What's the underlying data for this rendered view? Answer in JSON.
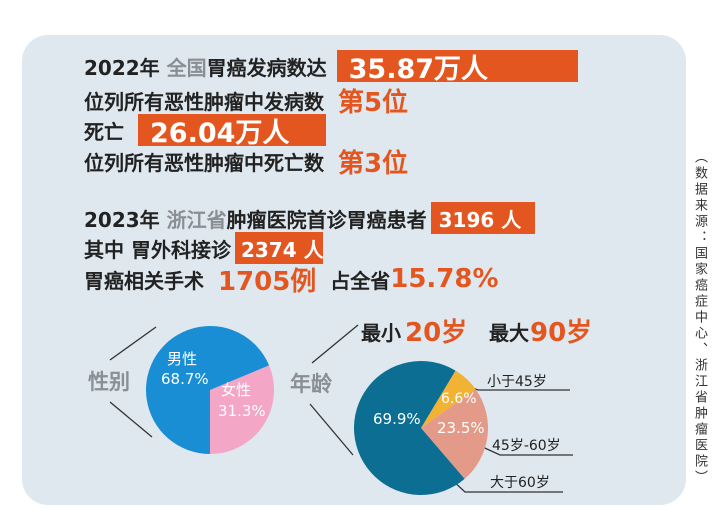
{
  "lines": {
    "l1_year": "2022年",
    "l1_scope": "全国",
    "l1_text": "胃癌发病数达",
    "l1_value": "35.87万人",
    "l2_text": "位列所有恶性肿瘤中发病数",
    "l2_rank": "第5位",
    "l3_text": "死亡",
    "l3_value": "26.04万人",
    "l4_text": "位列所有恶性肿瘤中死亡数",
    "l4_rank": "第3位",
    "l5_year": "2023年",
    "l5_scope": "浙江省",
    "l5_text": "肿瘤医院首诊胃癌患者",
    "l5_value": "3196 人",
    "l6_text": "其中 胃外科接诊",
    "l6_value": "2374 人",
    "l7_text": "胃癌相关手术",
    "l7_value": "1705例",
    "l7_text2": "占全省",
    "l7_pct": "15.78%"
  },
  "age_range": {
    "min_label": "最小",
    "min_value": "20岁",
    "max_label": "最大",
    "max_value": "90岁"
  },
  "source": "（数据来源：国家癌症中心、浙江省肿瘤医院）",
  "chart_data": [
    {
      "type": "pie",
      "title": "性别",
      "slices": [
        {
          "name": "男性",
          "value": 68.7,
          "label": "68.7%",
          "color": "#1a8ed5"
        },
        {
          "name": "女性",
          "value": 31.3,
          "label": "31.3%",
          "color": "#f3a6c5"
        }
      ]
    },
    {
      "type": "pie",
      "title": "年龄",
      "slices": [
        {
          "name": "小于45岁",
          "value": 6.6,
          "label": "6.6%",
          "color": "#f2b233"
        },
        {
          "name": "45岁-60岁",
          "value": 23.5,
          "label": "23.5%",
          "color": "#e39a88"
        },
        {
          "name": "大于60岁",
          "value": 69.9,
          "label": "69.9%",
          "color": "#0c6e93"
        }
      ]
    }
  ]
}
